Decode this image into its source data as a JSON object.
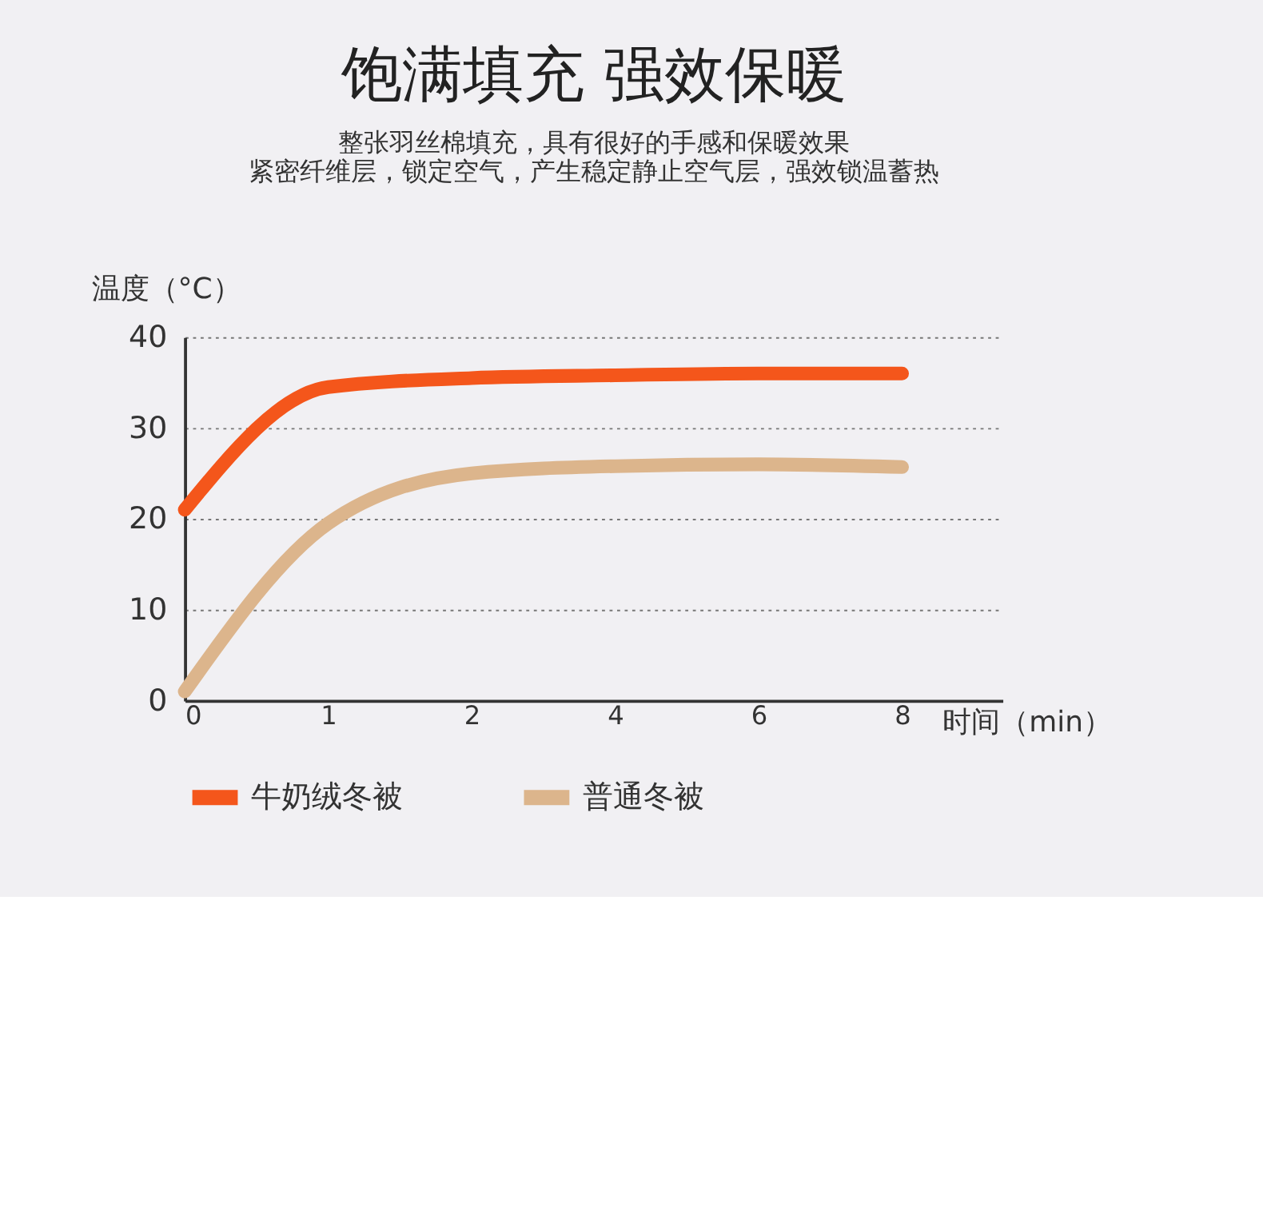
{
  "chart_data": {
    "type": "line",
    "title": "饱满填充 强效保暖",
    "subtitle": "整张羽丝棉填充，具有很好的手感和保暖效果",
    "annotations": [
      "紧密纤维层，锁定空气，产生稳定静止空气层，强效锁温蓄热"
    ],
    "xlabel": "时间（min）",
    "ylabel": "温度（°C）",
    "categories": [
      "0",
      "1",
      "2",
      "4",
      "6",
      "8"
    ],
    "series": [
      {
        "name": "牛奶绒冬被",
        "color": "#f4561b",
        "values": [
          21,
          34.5,
          35.5,
          35.8,
          36,
          36
        ]
      },
      {
        "name": "普通冬被",
        "color": "#dcb58c",
        "values": [
          1,
          19.5,
          25,
          25.8,
          26,
          25.7
        ]
      }
    ],
    "ylim": [
      0,
      40
    ],
    "yticks": [
      0,
      10,
      20,
      30,
      40
    ],
    "grid": "y",
    "legend": "bottom",
    "line_style": "solid"
  }
}
